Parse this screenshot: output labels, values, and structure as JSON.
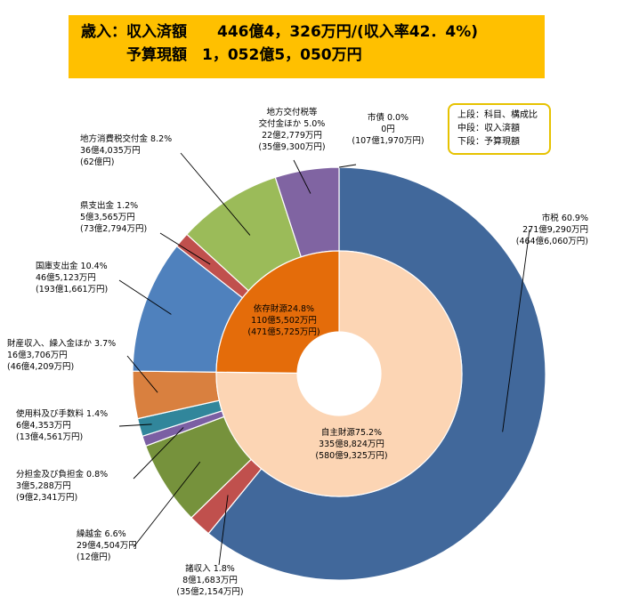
{
  "header": {
    "line1": "歳入：収入済額　　446億4，326万円/(収入率42．4%)",
    "line2": "　　　予算現額　1，052億5，050万円"
  },
  "legend_note": {
    "upper": "上段：科目、構成比",
    "middle": "中段：収入済額",
    "lower": "下段：予算現額"
  },
  "chart_data": {
    "type": "pie",
    "title": "",
    "outer_ring": [
      {
        "name": "市税",
        "pct": "60.9%",
        "share": 60.9,
        "received": "271億9,290万円",
        "budget": "(464億6,060万円)",
        "color": "#41689B"
      },
      {
        "name": "諸収入",
        "pct": "1.8%",
        "share": 1.8,
        "received": "8億1,683万円",
        "budget": "(35億2,154万円)",
        "color": "#C0504D"
      },
      {
        "name": "繰越金",
        "pct": "6.6%",
        "share": 6.6,
        "received": "29億4,504万円",
        "budget": "(12億円)",
        "color": "#76923C"
      },
      {
        "name": "分担金及び負担金",
        "pct": "0.8%",
        "share": 0.8,
        "received": "3億5,288万円",
        "budget": "(9億2,341万円)",
        "color": "#7B5FA3"
      },
      {
        "name": "使用料及び手数料",
        "pct": "1.4%",
        "share": 1.4,
        "received": "6億4,353万円",
        "budget": "(13億4,561万円)",
        "color": "#31869B"
      },
      {
        "name": "財産収入、繰入金ほか",
        "pct": "3.7%",
        "share": 3.7,
        "received": "16億3,706万円",
        "budget": "(46億4,209万円)",
        "color": "#D9803F"
      },
      {
        "name": "国庫支出金",
        "pct": "10.4%",
        "share": 10.4,
        "received": "46億5,123万円",
        "budget": "(193億1,661万円)",
        "color": "#4F81BD"
      },
      {
        "name": "県支出金",
        "pct": "1.2%",
        "share": 1.2,
        "received": "5億3,565万円",
        "budget": "(73億2,794万円)",
        "color": "#C0504D"
      },
      {
        "name": "地方消費税交付金",
        "pct": "8.2%",
        "share": 8.2,
        "received": "36億4,035万円",
        "budget": "(62億円)",
        "color": "#9BBB59"
      },
      {
        "name": "地方交付税等交付金ほか",
        "name_line1": "地方交付税等",
        "name_line2": "交付金ほか",
        "pct": "5.0%",
        "share": 5.0,
        "received": "22億2,779万円",
        "budget": "(35億9,300万円)",
        "color": "#8064A2"
      },
      {
        "name": "市債",
        "pct": "0.0%",
        "share": 0.0,
        "received": "0円",
        "budget": "(107億1,970万円)",
        "color": "#8064A2"
      }
    ],
    "inner_ring": [
      {
        "name": "自主財源",
        "pct": "75.2%",
        "share": 75.2,
        "received": "335億8,824万円",
        "budget": "(580億9,325万円)",
        "color": "#FCD5B4"
      },
      {
        "name": "依存財源",
        "pct": "24.8%",
        "share": 24.8,
        "received": "110億5,502万円",
        "budget": "(471億5,725万円)",
        "color": "#E46C0A"
      }
    ]
  }
}
